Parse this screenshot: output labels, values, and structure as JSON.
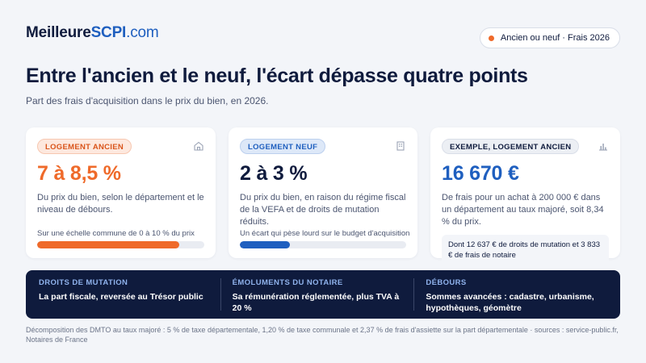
{
  "brand": {
    "name": "Meilleure",
    "accent": "SCPI",
    "tld": ".com"
  },
  "badge": {
    "label": "Ancien ou neuf · Frais 2026",
    "dot_color": "#ef6a2a"
  },
  "header": {
    "title": "Entre l'ancien et le neuf, l'écart dépasse quatre points",
    "subtitle": "Part des frais d'acquisition dans le prix du bien, en 2026."
  },
  "cards": [
    {
      "tag": "LOGEMENT ANCIEN",
      "icon": "house-icon",
      "value": "7 à 8,5 %",
      "description": "Du prix du bien, selon le département et le niveau de débours.",
      "scale_label": "Sur une échelle commune de 0 à 10 % du prix",
      "bar_fraction": 0.85,
      "color": "#ef6a2a"
    },
    {
      "tag": "LOGEMENT NEUF",
      "icon": "building-icon",
      "value": "2 à 3 %",
      "description": "Du prix du bien, en raison du régime fiscal de la VEFA et de droits de mutation réduits.",
      "scale_label": "Un écart qui pèse lourd sur le budget d'acquisition",
      "bar_fraction": 0.3,
      "color": "#1f5fbf"
    },
    {
      "tag": "EXEMPLE, LOGEMENT ANCIEN",
      "icon": "bar-chart-icon",
      "value": "16 670 €",
      "description": "De frais pour un achat à 200 000 € dans un département au taux majoré, soit 8,34 % du prix.",
      "note": "Dont 12 637 € de droits de mutation et 3 833 € de frais de notaire"
    }
  ],
  "breakdown": [
    {
      "title": "DROITS DE MUTATION",
      "text": "La part fiscale, reversée au Trésor public"
    },
    {
      "title": "ÉMOLUMENTS DU NOTAIRE",
      "text": "Sa rémunération réglementée, plus TVA à 20 %"
    },
    {
      "title": "DÉBOURS",
      "text": "Sommes avancées : cadastre, urbanisme, hypothèques, géomètre"
    }
  ],
  "footer": "Décomposition des DMTO au taux majoré : 5 % de taxe départementale, 1,20 % de taxe communale et 2,37 % de frais d'assiette sur la part départementale · sources : service-public.fr, Notaires de France"
}
